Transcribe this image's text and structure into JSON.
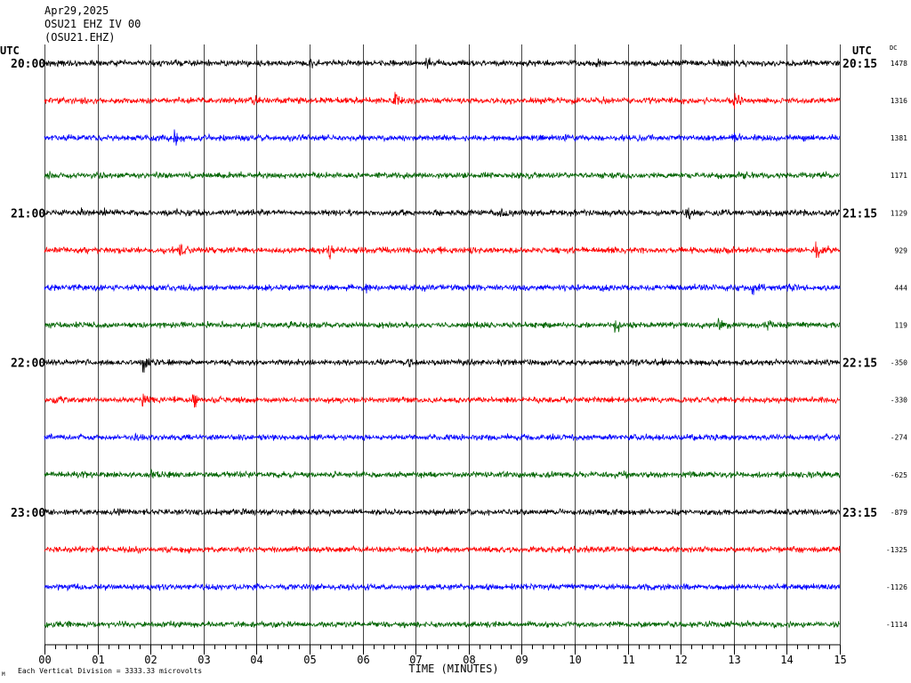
{
  "labels": {
    "utc_left": "UTC",
    "utc_right": "UTC",
    "dc": "DC",
    "scale_note": "Each Vertical Division = 3333.33 microvolts",
    "corner_mark": "M"
  },
  "chart_data": {
    "type": "line",
    "title_lines": [
      "Apr29,2025",
      "OSU21 EHZ IV 00",
      "(OSU21.EHZ)"
    ],
    "xlabel": "TIME (MINUTES)",
    "xlim": [
      0,
      15
    ],
    "x_ticks": [
      "00",
      "01",
      "02",
      "03",
      "04",
      "05",
      "06",
      "07",
      "08",
      "09",
      "10",
      "11",
      "12",
      "13",
      "14",
      "15"
    ],
    "vertical_division_microvolts": 3333.33,
    "noise_amplitude_microvolts": 250,
    "traces": [
      {
        "left_label": "20:00",
        "right_label": "20:15",
        "dc": 1478,
        "color": "#000000",
        "events": [
          {
            "minute": 5.0,
            "amplitude_microvolts": 480
          },
          {
            "minute": 7.2,
            "amplitude_microvolts": 560
          },
          {
            "minute": 10.4,
            "amplitude_microvolts": 480
          },
          {
            "minute": 12.6,
            "amplitude_microvolts": 400
          }
        ]
      },
      {
        "dc": 1316,
        "color": "#ff0000",
        "events": [
          {
            "minute": 3.9,
            "amplitude_microvolts": 400
          },
          {
            "minute": 6.6,
            "amplitude_microvolts": 800
          },
          {
            "minute": 10.5,
            "amplitude_microvolts": 320
          },
          {
            "minute": 13.0,
            "amplitude_microvolts": 870
          }
        ]
      },
      {
        "dc": 1381,
        "color": "#0000ff",
        "events": [
          {
            "minute": 1.9,
            "amplitude_microvolts": 480
          },
          {
            "minute": 2.45,
            "amplitude_microvolts": 720
          },
          {
            "minute": 9.8,
            "amplitude_microvolts": 480
          },
          {
            "minute": 13.0,
            "amplitude_microvolts": 560
          }
        ]
      },
      {
        "dc": 1171,
        "color": "#006400",
        "events": [
          {
            "minute": 0.1,
            "amplitude_microvolts": 560
          },
          {
            "minute": 13.1,
            "amplitude_microvolts": 480
          }
        ]
      },
      {
        "left_label": "21:00",
        "right_label": "21:15",
        "dc": 1129,
        "color": "#000000",
        "events": [
          {
            "minute": 0.7,
            "amplitude_microvolts": 640
          },
          {
            "minute": 1.1,
            "amplitude_microvolts": 400
          },
          {
            "minute": 3.05,
            "amplitude_microvolts": 400
          },
          {
            "minute": 8.6,
            "amplitude_microvolts": 480
          },
          {
            "minute": 12.1,
            "amplitude_microvolts": 720
          }
        ]
      },
      {
        "dc": 929,
        "color": "#ff0000",
        "events": [
          {
            "minute": 2.55,
            "amplitude_microvolts": 640
          },
          {
            "minute": 5.35,
            "amplitude_microvolts": 950
          },
          {
            "minute": 12.85,
            "amplitude_microvolts": 640
          },
          {
            "minute": 14.55,
            "amplitude_microvolts": 1030
          }
        ]
      },
      {
        "dc": 444,
        "color": "#0000ff",
        "events": [
          {
            "minute": 6.05,
            "amplitude_microvolts": 480
          },
          {
            "minute": 10.5,
            "amplitude_microvolts": 400
          },
          {
            "minute": 13.35,
            "amplitude_microvolts": 640
          },
          {
            "minute": 14.0,
            "amplitude_microvolts": 480
          }
        ]
      },
      {
        "dc": 119,
        "color": "#006400",
        "events": [
          {
            "minute": 0.8,
            "amplitude_microvolts": 480
          },
          {
            "minute": 10.75,
            "amplitude_microvolts": 640
          },
          {
            "minute": 12.7,
            "amplitude_microvolts": 640
          },
          {
            "minute": 13.65,
            "amplitude_microvolts": 560
          }
        ]
      },
      {
        "left_label": "22:00",
        "right_label": "22:15",
        "dc": -350,
        "color": "#000000",
        "events": [
          {
            "minute": 1.85,
            "amplitude_microvolts": 1350
          },
          {
            "minute": 6.85,
            "amplitude_microvolts": 560
          },
          {
            "minute": 11.65,
            "amplitude_microvolts": 480
          }
        ]
      },
      {
        "dc": -330,
        "color": "#ff0000",
        "events": [
          {
            "minute": 0.2,
            "amplitude_microvolts": 480
          },
          {
            "minute": 1.85,
            "amplitude_microvolts": 800
          },
          {
            "minute": 2.8,
            "amplitude_microvolts": 800
          }
        ]
      },
      {
        "dc": -274,
        "color": "#0000ff",
        "events": [
          {
            "minute": 1.7,
            "amplitude_microvolts": 400
          },
          {
            "minute": 13.8,
            "amplitude_microvolts": 560
          }
        ]
      },
      {
        "dc": -625,
        "color": "#006400",
        "events": [
          {
            "minute": 2.0,
            "amplitude_microvolts": 480
          }
        ]
      },
      {
        "left_label": "23:00",
        "right_label": "23:15",
        "dc": -879,
        "color": "#000000",
        "events": []
      },
      {
        "dc": -1325,
        "color": "#ff0000",
        "events": []
      },
      {
        "dc": -1126,
        "color": "#0000ff",
        "events": []
      },
      {
        "dc": -1114,
        "color": "#006400",
        "events": []
      }
    ]
  }
}
